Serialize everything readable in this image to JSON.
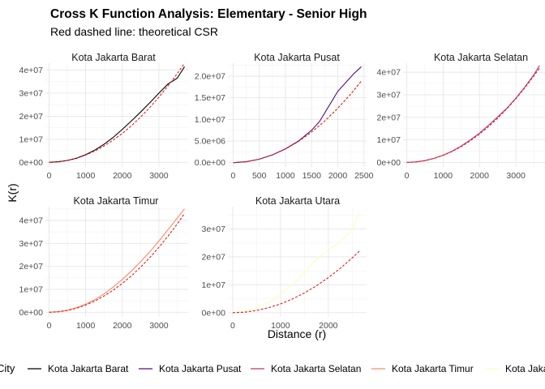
{
  "chart_data": {
    "type": "line",
    "title": "Cross K Function Analysis: Elementary - Senior High",
    "subtitle": "Red dashed line: theoretical CSR",
    "xlabel": "Distance (r)",
    "ylabel": "K(r)",
    "legend": {
      "title": "City",
      "position": "bottom",
      "entries": [
        {
          "name": "Kota Jakarta Barat",
          "color": "#000004"
        },
        {
          "name": "Kota Jakarta Pusat",
          "color": "#51127c"
        },
        {
          "name": "Kota Jakarta Selatan",
          "color": "#b73779"
        },
        {
          "name": "Kota Jakarta Timur",
          "color": "#fc8961"
        },
        {
          "name": "Kota Jakarta Utara",
          "color": "#fcfdbf"
        }
      ]
    },
    "theoretical_color": "#e41a1c",
    "grid": true,
    "panels": [
      {
        "name": "Kota Jakarta Barat",
        "color": "#000004",
        "xlim": [
          -100,
          3800
        ],
        "ylim": [
          -2000000,
          43000000
        ],
        "xticks": [
          0,
          1000,
          2000,
          3000
        ],
        "xtick_labels": [
          "0",
          "1000",
          "2000",
          "3000"
        ],
        "yticks": [
          0,
          10000000,
          20000000,
          30000000,
          40000000
        ],
        "ytick_labels": [
          "0e+00",
          "1e+07",
          "2e+07",
          "3e+07",
          "4e+07"
        ],
        "observed": {
          "x": [
            0,
            250,
            500,
            750,
            1000,
            1250,
            1500,
            1750,
            2000,
            2250,
            2500,
            2750,
            3000,
            3250,
            3500,
            3700
          ],
          "y": [
            0,
            250000,
            800000,
            1800000,
            3300000,
            5300000,
            7800000,
            10800000,
            14300000,
            18000000,
            21800000,
            25800000,
            30000000,
            34000000,
            36500000,
            41500000
          ]
        },
        "theoretical": {
          "x": [
            0,
            250,
            500,
            750,
            1000,
            1250,
            1500,
            1750,
            2000,
            2250,
            2500,
            2750,
            3000,
            3250,
            3500,
            3700
          ],
          "y": [
            0,
            196000,
            785000,
            1770000,
            3140000,
            4910000,
            7070000,
            9620000,
            12570000,
            15900000,
            19630000,
            23760000,
            28270000,
            33180000,
            38480000,
            43010000
          ]
        }
      },
      {
        "name": "Kota Jakarta Pusat",
        "color": "#51127c",
        "xlim": [
          -100,
          2550
        ],
        "ylim": [
          -1000000,
          23000000
        ],
        "xticks": [
          0,
          500,
          1000,
          1500,
          2000,
          2500
        ],
        "xtick_labels": [
          "0",
          "500",
          "1000",
          "1500",
          "2000",
          "2500"
        ],
        "yticks": [
          0,
          5000000,
          10000000,
          15000000,
          20000000
        ],
        "ytick_labels": [
          "0.0e+00",
          "5.0e+06",
          "1.0e+07",
          "1.5e+07",
          "2.0e+07"
        ],
        "observed": {
          "x": [
            0,
            250,
            500,
            750,
            1000,
            1250,
            1500,
            1650,
            1750,
            1900,
            2000,
            2150,
            2300,
            2450
          ],
          "y": [
            0,
            200000,
            800000,
            1800000,
            3200000,
            5000000,
            7500000,
            9500000,
            11500000,
            14500000,
            16500000,
            18500000,
            20500000,
            22200000
          ]
        },
        "theoretical": {
          "x": [
            0,
            250,
            500,
            750,
            1000,
            1250,
            1500,
            1750,
            2000,
            2250,
            2450
          ],
          "y": [
            0,
            196000,
            785000,
            1770000,
            3140000,
            4910000,
            7070000,
            9620000,
            12570000,
            15900000,
            18860000
          ]
        }
      },
      {
        "name": "Kota Jakarta Selatan",
        "color": "#b73779",
        "xlim": [
          -100,
          3800
        ],
        "ylim": [
          -2000000,
          44000000
        ],
        "xticks": [
          0,
          1000,
          2000,
          3000
        ],
        "xtick_labels": [
          "0",
          "1000",
          "2000",
          "3000"
        ],
        "yticks": [
          0,
          10000000,
          20000000,
          30000000,
          40000000
        ],
        "ytick_labels": [
          "0e+00",
          "1e+07",
          "2e+07",
          "3e+07",
          "4e+07"
        ],
        "observed": {
          "x": [
            0,
            250,
            500,
            750,
            1000,
            1250,
            1500,
            1750,
            2000,
            2250,
            2500,
            2750,
            3000,
            3250,
            3500,
            3650
          ],
          "y": [
            0,
            230000,
            800000,
            1800000,
            3200000,
            5000000,
            7300000,
            10000000,
            13000000,
            16500000,
            20200000,
            24000000,
            28500000,
            33500000,
            39000000,
            43000000
          ]
        },
        "theoretical": {
          "x": [
            0,
            250,
            500,
            750,
            1000,
            1250,
            1500,
            1750,
            2000,
            2250,
            2500,
            2750,
            3000,
            3250,
            3500,
            3650
          ],
          "y": [
            0,
            196000,
            785000,
            1770000,
            3140000,
            4910000,
            7070000,
            9620000,
            12570000,
            15900000,
            19630000,
            23760000,
            28270000,
            33180000,
            38480000,
            41850000
          ]
        }
      },
      {
        "name": "Kota Jakarta Timur",
        "color": "#fc8961",
        "xlim": [
          -100,
          3800
        ],
        "ylim": [
          -2000000,
          46000000
        ],
        "xticks": [
          0,
          1000,
          2000,
          3000
        ],
        "xtick_labels": [
          "0",
          "1000",
          "2000",
          "3000"
        ],
        "yticks": [
          0,
          10000000,
          20000000,
          30000000,
          40000000
        ],
        "ytick_labels": [
          "0e+00",
          "1e+07",
          "2e+07",
          "3e+07",
          "4e+07"
        ],
        "observed": {
          "x": [
            0,
            250,
            500,
            750,
            1000,
            1250,
            1500,
            1750,
            2000,
            2250,
            2500,
            2750,
            3000,
            3250,
            3500,
            3700
          ],
          "y": [
            0,
            250000,
            900000,
            2000000,
            3500000,
            5500000,
            8000000,
            11000000,
            14300000,
            18000000,
            22000000,
            26300000,
            31000000,
            36000000,
            41000000,
            45000000
          ]
        },
        "theoretical": {
          "x": [
            0,
            250,
            500,
            750,
            1000,
            1250,
            1500,
            1750,
            2000,
            2250,
            2500,
            2750,
            3000,
            3250,
            3500,
            3700
          ],
          "y": [
            0,
            196000,
            785000,
            1770000,
            3140000,
            4910000,
            7070000,
            9620000,
            12570000,
            15900000,
            19630000,
            23760000,
            28270000,
            33180000,
            38480000,
            43010000
          ]
        }
      },
      {
        "name": "Kota Jakarta Utara",
        "color": "#fcfdbf",
        "xlim": [
          -100,
          2800
        ],
        "ylim": [
          -1500000,
          38000000
        ],
        "xticks": [
          0,
          1000,
          2000
        ],
        "xtick_labels": [
          "0",
          "1000",
          "2000"
        ],
        "yticks": [
          0,
          10000000,
          20000000,
          30000000
        ],
        "ytick_labels": [
          "0e+00",
          "1e+07",
          "2e+07",
          "3e+07"
        ],
        "observed": {
          "x": [
            0,
            250,
            500,
            750,
            1000,
            1250,
            1500,
            1750,
            2000,
            2250,
            2500,
            2650
          ],
          "y": [
            0,
            500000,
            1700000,
            3700000,
            6500000,
            10000000,
            14200000,
            19000000,
            22500000,
            25500000,
            29500000,
            36000000
          ]
        },
        "theoretical": {
          "x": [
            0,
            250,
            500,
            750,
            1000,
            1250,
            1500,
            1750,
            2000,
            2250,
            2500,
            2650
          ],
          "y": [
            0,
            196000,
            785000,
            1770000,
            3140000,
            4910000,
            7070000,
            9620000,
            12570000,
            15900000,
            19630000,
            22060000
          ]
        }
      }
    ]
  }
}
